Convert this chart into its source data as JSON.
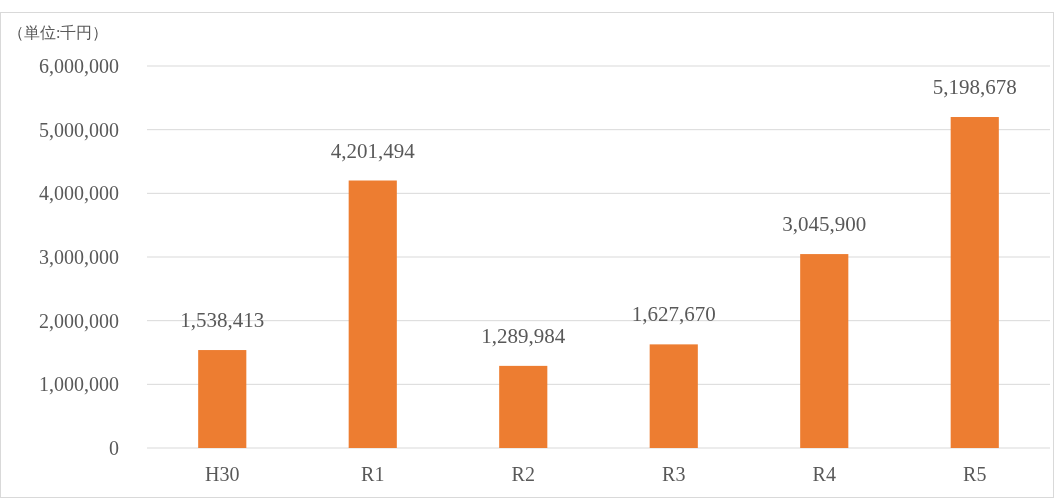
{
  "chart_data": {
    "type": "bar",
    "ylabel": "（単位:千円）",
    "categories": [
      "H30",
      "R1",
      "R2",
      "R3",
      "R4",
      "R5"
    ],
    "values": [
      1538413,
      4201494,
      1289984,
      1627670,
      3045900,
      5198678
    ],
    "color": "#ed7d31",
    "ylim": [
      0,
      6000000
    ],
    "yticks": [
      0,
      {
        "value": 1000000,
        "label": "1,000,000"
      },
      {
        "value": 2000000,
        "label": "2,000,000"
      },
      {
        "value": 3000000,
        "label": "3,000,000"
      },
      {
        "value": 4000000,
        "label": "4,000,000"
      },
      {
        "value": 5000000,
        "label": "5,000,000"
      },
      {
        "value": 6000000,
        "label": "6,000,000"
      }
    ],
    "value_labels": [
      "1,538,413",
      "4,201,494",
      "1,289,984",
      "1,627,670",
      "3,045,900",
      "5,198,678"
    ],
    "grid": "y"
  }
}
